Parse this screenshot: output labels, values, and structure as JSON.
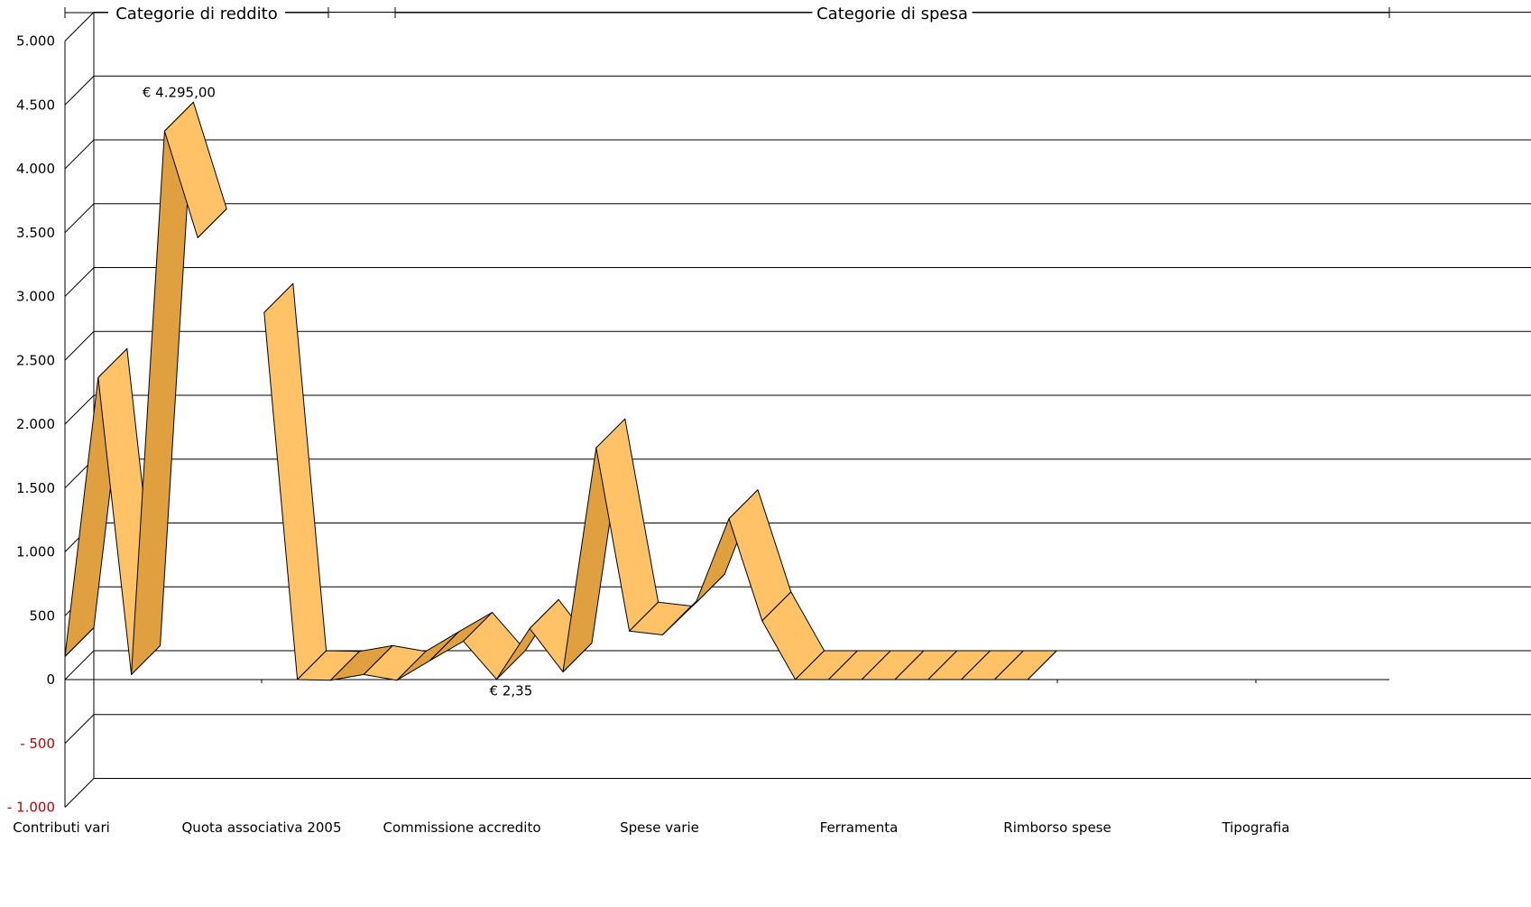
{
  "chart_data": {
    "type": "line",
    "style": "3d-ribbon",
    "ylim": [
      -1000,
      5000
    ],
    "yticks": [
      {
        "value": 5000,
        "label": "5.000"
      },
      {
        "value": 4500,
        "label": "4.500"
      },
      {
        "value": 4000,
        "label": "4.000"
      },
      {
        "value": 3500,
        "label": "3.500"
      },
      {
        "value": 3000,
        "label": "3.000"
      },
      {
        "value": 2500,
        "label": "2.500"
      },
      {
        "value": 2000,
        "label": "2.000"
      },
      {
        "value": 1500,
        "label": "1.500"
      },
      {
        "value": 1000,
        "label": "1.000"
      },
      {
        "value": 500,
        "label": "500"
      },
      {
        "value": 0,
        "label": "0"
      },
      {
        "value": -500,
        "label": "- 500"
      },
      {
        "value": -1000,
        "label": "- 1.000"
      }
    ],
    "negative_tick_color": "#c00000",
    "grid": true,
    "ribbon_colors": {
      "top": "#ffc266",
      "side": "#e0a040",
      "stroke": "#000000"
    },
    "category_labels": [
      "Contributi vari",
      "Quota associativa 2005",
      "Commissione accredito",
      "Spese varie",
      "Ferramenta",
      "Rimborso spese",
      "Tipografia"
    ],
    "groups": [
      {
        "label": "Categorie di reddito",
        "x": [
          1,
          2,
          3,
          4,
          5
        ],
        "values": [
          180,
          2365,
          40,
          4295,
          3460
        ]
      },
      {
        "label": "Categorie di spesa",
        "x": [
          7,
          8,
          9,
          10,
          11,
          12,
          13,
          14,
          15,
          16,
          17,
          18,
          19,
          20,
          21,
          22,
          23,
          24,
          25,
          26,
          27,
          28,
          29,
          30
        ],
        "values": [
          2875,
          0,
          -5,
          40,
          -5,
          150,
          300,
          2.35,
          400,
          60,
          1815,
          380,
          350,
          600,
          1260,
          460,
          0,
          0,
          0,
          0,
          0,
          0,
          0,
          0
        ]
      }
    ],
    "data_labels": [
      {
        "x": 4,
        "value": 4295,
        "label": "€ 4.295,00"
      },
      {
        "x": 14,
        "value": 2.35,
        "label": "€ 2,35"
      }
    ]
  }
}
